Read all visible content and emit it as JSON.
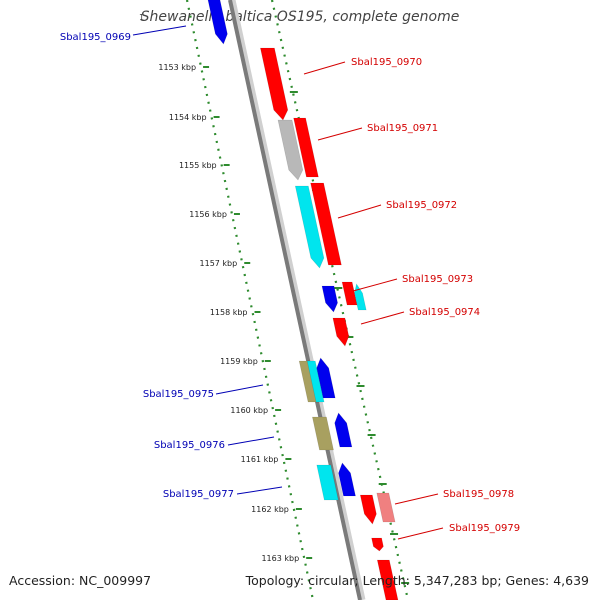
{
  "title": "Shewanella baltica OS195, complete genome",
  "title_mark": "1",
  "footer": {
    "accession": "Accession: NC_009997",
    "stats": "Topology: circular; Length: 5,347,283 bp; Genes: 4,639"
  },
  "colors": {
    "backbone": "#7a7a7a",
    "dotted_track": "#2e8b2e",
    "forward_label": "#d40000",
    "reverse_label": "#0000b4",
    "red_gene": "#ff0000",
    "grey_gene": "#b8b8b8",
    "cyan_gene": "#00e5ee",
    "blue_gene": "#0000ee",
    "olive_gene": "#a8a060",
    "pink_gene": "#f08080"
  },
  "ticks": [
    {
      "label": "1153 kbp"
    },
    {
      "label": "1154 kbp"
    },
    {
      "label": "1155 kbp"
    },
    {
      "label": "1156 kbp"
    },
    {
      "label": "1157 kbp"
    },
    {
      "label": "1158 kbp"
    },
    {
      "label": "1159 kbp"
    },
    {
      "label": "1160 kbp"
    },
    {
      "label": "1161 kbp"
    },
    {
      "label": "1162 kbp"
    },
    {
      "label": "1163 kbp"
    }
  ],
  "gene_labels": [
    {
      "text": "Sbal195_0969",
      "strand": "reverse"
    },
    {
      "text": "Sbal195_0970",
      "strand": "forward"
    },
    {
      "text": "Sbal195_0971",
      "strand": "forward"
    },
    {
      "text": "Sbal195_0972",
      "strand": "forward"
    },
    {
      "text": "Sbal195_0973",
      "strand": "forward"
    },
    {
      "text": "Sbal195_0974",
      "strand": "forward"
    },
    {
      "text": "Sbal195_0975",
      "strand": "reverse"
    },
    {
      "text": "Sbal195_0976",
      "strand": "reverse"
    },
    {
      "text": "Sbal195_0977",
      "strand": "reverse"
    },
    {
      "text": "Sbal195_0978",
      "strand": "forward"
    },
    {
      "text": "Sbal195_0979",
      "strand": "forward"
    }
  ],
  "features": [
    {
      "color": "blue_gene"
    },
    {
      "color": "red_gene"
    },
    {
      "color": "red_gene"
    },
    {
      "color": "grey_gene"
    },
    {
      "color": "red_gene"
    },
    {
      "color": "cyan_gene"
    },
    {
      "color": "red_gene"
    },
    {
      "color": "cyan_gene"
    },
    {
      "color": "blue_gene"
    },
    {
      "color": "red_gene"
    },
    {
      "color": "olive_gene"
    },
    {
      "color": "cyan_gene"
    },
    {
      "color": "blue_gene"
    },
    {
      "color": "olive_gene"
    },
    {
      "color": "blue_gene"
    },
    {
      "color": "cyan_gene"
    },
    {
      "color": "blue_gene"
    },
    {
      "color": "red_gene"
    },
    {
      "color": "pink_gene"
    },
    {
      "color": "red_gene"
    },
    {
      "color": "red_gene"
    }
  ]
}
